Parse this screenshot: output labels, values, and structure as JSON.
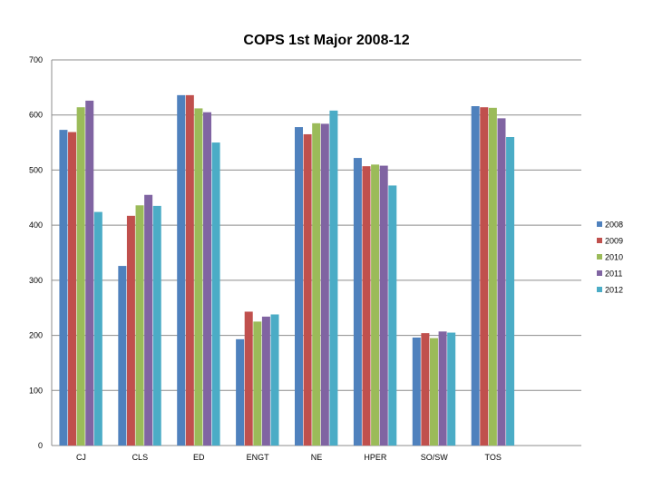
{
  "chart_data": {
    "type": "bar",
    "title": "COPS 1st Major 2008-12",
    "xlabel": "",
    "ylabel": "",
    "ylim": [
      0,
      700
    ],
    "yticks": [
      "0",
      "100",
      "200",
      "300",
      "400",
      "500",
      "600",
      "700"
    ],
    "categories": [
      "CJ",
      "CLS",
      "ED",
      "ENGT",
      "NE",
      "HPER",
      "SO/SW",
      "TOS"
    ],
    "grid": true,
    "legend_position": "right",
    "series": [
      {
        "name": "2008",
        "color": "#4f81bd",
        "values": [
          573,
          326,
          636,
          193,
          578,
          522,
          196,
          616
        ]
      },
      {
        "name": "2009",
        "color": "#c0504d",
        "values": [
          569,
          417,
          636,
          243,
          565,
          507,
          204,
          614
        ]
      },
      {
        "name": "2010",
        "color": "#9bbb59",
        "values": [
          614,
          436,
          612,
          225,
          585,
          510,
          195,
          613
        ]
      },
      {
        "name": "2011",
        "color": "#8064a2",
        "values": [
          626,
          455,
          605,
          234,
          584,
          508,
          207,
          594
        ]
      },
      {
        "name": "2012",
        "color": "#4bacc6",
        "values": [
          424,
          435,
          550,
          238,
          608,
          472,
          205,
          560
        ]
      }
    ]
  }
}
